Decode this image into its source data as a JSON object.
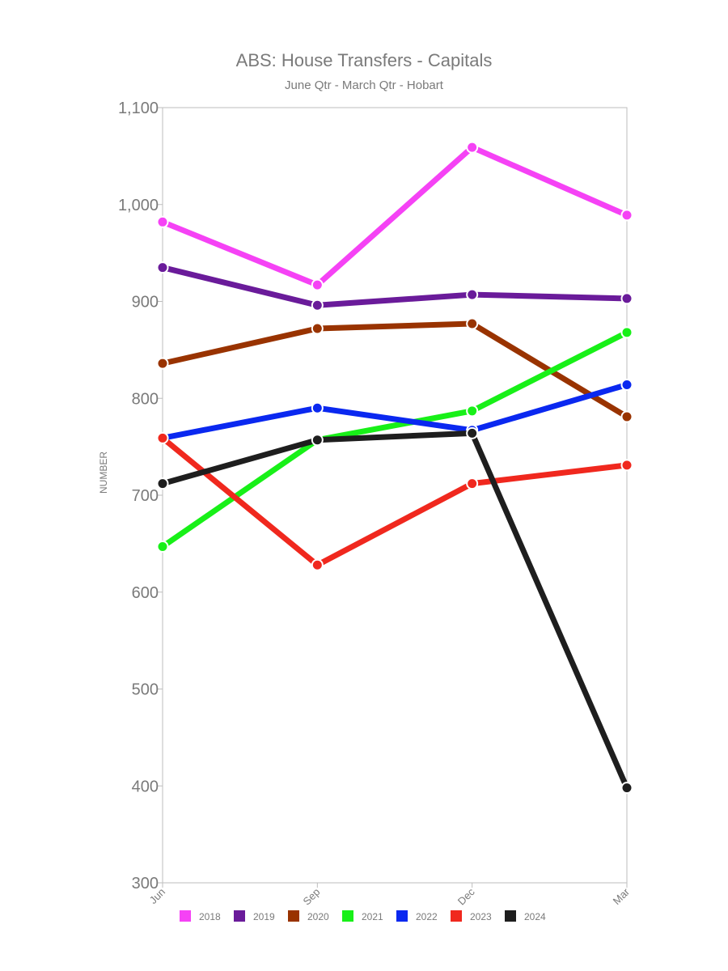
{
  "chart_data": {
    "type": "line",
    "title": "ABS: House Transfers - Capitals",
    "subtitle": "June Qtr - March Qtr - Hobart",
    "xlabel": "",
    "ylabel": "NUMBER",
    "categories": [
      "Jun",
      "Sep",
      "Dec",
      "Mar"
    ],
    "ylim": [
      300,
      1100
    ],
    "yticks": [
      300,
      400,
      500,
      600,
      700,
      800,
      900,
      1000,
      1100
    ],
    "ytick_labels": [
      "300",
      "400",
      "500",
      "600",
      "700",
      "800",
      "900",
      "1,000",
      "1,100"
    ],
    "grid": false,
    "legend_position": "bottom",
    "series": [
      {
        "name": "2018",
        "color": "#f542f5",
        "values": [
          982,
          917,
          1059,
          989
        ]
      },
      {
        "name": "2019",
        "color": "#6a1b9a",
        "values": [
          935,
          896,
          907,
          903
        ]
      },
      {
        "name": "2020",
        "color": "#993300",
        "values": [
          836,
          872,
          877,
          781
        ]
      },
      {
        "name": "2021",
        "color": "#18f018",
        "values": [
          647,
          757,
          787,
          868
        ]
      },
      {
        "name": "2022",
        "color": "#0a28f0",
        "values": [
          759,
          790,
          767,
          814
        ]
      },
      {
        "name": "2023",
        "color": "#f0281e",
        "values": [
          759,
          628,
          712,
          731
        ]
      },
      {
        "name": "2024",
        "color": "#1e1e1e",
        "values": [
          712,
          757,
          764,
          398
        ]
      }
    ]
  }
}
